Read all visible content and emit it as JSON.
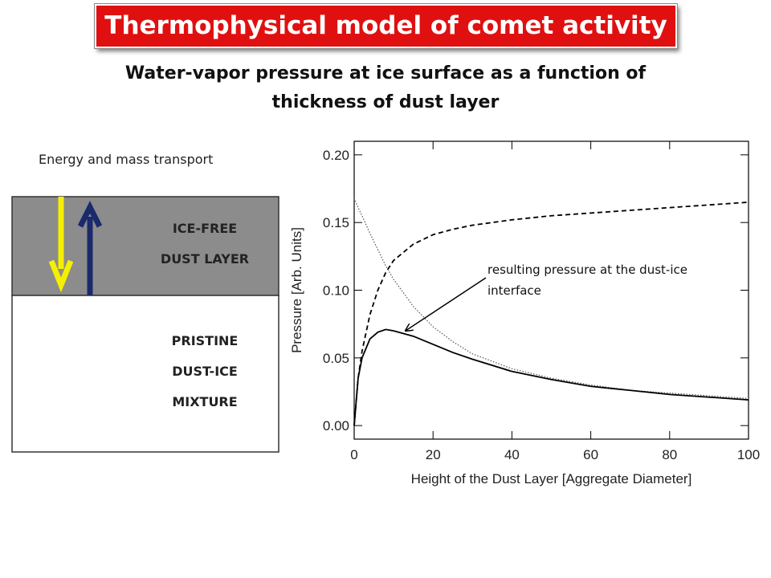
{
  "slide": {
    "title": "Thermophysical model of comet activity",
    "subtitle": "Water-vapor pressure at ice surface as a function of thickness of dust layer",
    "transport_label": "Energy and mass transport",
    "upper_layer": [
      "ICE-FREE",
      "DUST LAYER"
    ],
    "lower_layer": [
      "PRISTINE",
      "DUST-ICE",
      "MIXTURE"
    ]
  },
  "chart_data": {
    "type": "line",
    "xlabel": "Height of the Dust Layer [Aggregate Diameter]",
    "ylabel": "Pressure [Arb. Units]",
    "annotation": "resulting pressure at the dust-ice interface",
    "x": [
      0,
      1,
      2,
      4,
      6,
      8,
      10,
      15,
      20,
      25,
      30,
      40,
      50,
      60,
      70,
      80,
      90,
      100
    ],
    "series": [
      {
        "color": "#000000",
        "dash": "dashed",
        "values": [
          0,
          0.035,
          0.055,
          0.082,
          0.1,
          0.113,
          0.122,
          0.134,
          0.141,
          0.145,
          0.148,
          0.152,
          0.155,
          0.157,
          0.159,
          0.161,
          0.163,
          0.165
        ]
      },
      {
        "color": "#555555",
        "dash": "dotted",
        "values": [
          0.168,
          0.161,
          0.155,
          0.142,
          0.13,
          0.118,
          0.108,
          0.088,
          0.073,
          0.062,
          0.053,
          0.042,
          0.035,
          0.03,
          0.026,
          0.024,
          0.022,
          0.02
        ]
      },
      {
        "color": "#000000",
        "dash": "solid",
        "values": [
          0,
          0.035,
          0.05,
          0.064,
          0.069,
          0.071,
          0.07,
          0.066,
          0.06,
          0.054,
          0.049,
          0.04,
          0.034,
          0.029,
          0.026,
          0.023,
          0.021,
          0.019
        ]
      }
    ],
    "xlim": [
      0,
      100
    ],
    "xticks": [
      0,
      20,
      40,
      60,
      80,
      100
    ],
    "ylim": [
      -0.01,
      0.21
    ],
    "yticks": [
      {
        "value": 0,
        "label": "0.00"
      },
      {
        "value": 0.05,
        "label": "0.05"
      },
      {
        "value": 0.1,
        "label": "0.10"
      },
      {
        "value": 0.15,
        "label": "0.15"
      },
      {
        "value": 0.2,
        "label": "0.20"
      }
    ]
  }
}
